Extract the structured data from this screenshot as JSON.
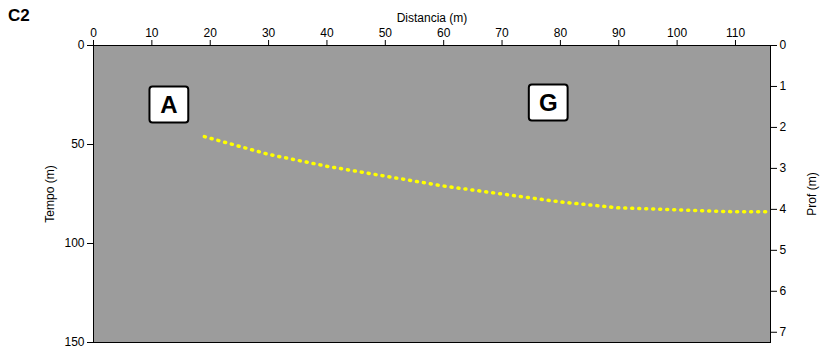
{
  "chart_data": {
    "type": "line",
    "title": "C2",
    "x_label": "Distancia (m)",
    "y_label": "Tempo (m)",
    "y2_label": "Prof (m)",
    "xlim": [
      0,
      116
    ],
    "xticks": [
      0,
      10,
      20,
      30,
      40,
      50,
      60,
      70,
      80,
      90,
      100,
      110
    ],
    "ylim": [
      0,
      150
    ],
    "yticks": [
      0,
      50,
      100,
      150
    ],
    "y2lim": [
      0,
      7.25
    ],
    "y2ticks": [
      0,
      1,
      2,
      3,
      4,
      5,
      6,
      7
    ],
    "x": [
      19,
      30,
      40,
      50,
      60,
      70,
      80,
      90,
      100,
      110,
      116
    ],
    "series": [
      {
        "color": "#ffff00",
        "line_style": "dotted",
        "values": [
          46,
          55,
          61,
          66,
          71,
          75,
          79,
          82,
          83,
          84,
          84
        ]
      }
    ],
    "annotations": [
      {
        "text": "A",
        "x": 13,
        "y": 30
      },
      {
        "text": "G",
        "x": 78,
        "y": 29
      }
    ],
    "grid": false
  }
}
